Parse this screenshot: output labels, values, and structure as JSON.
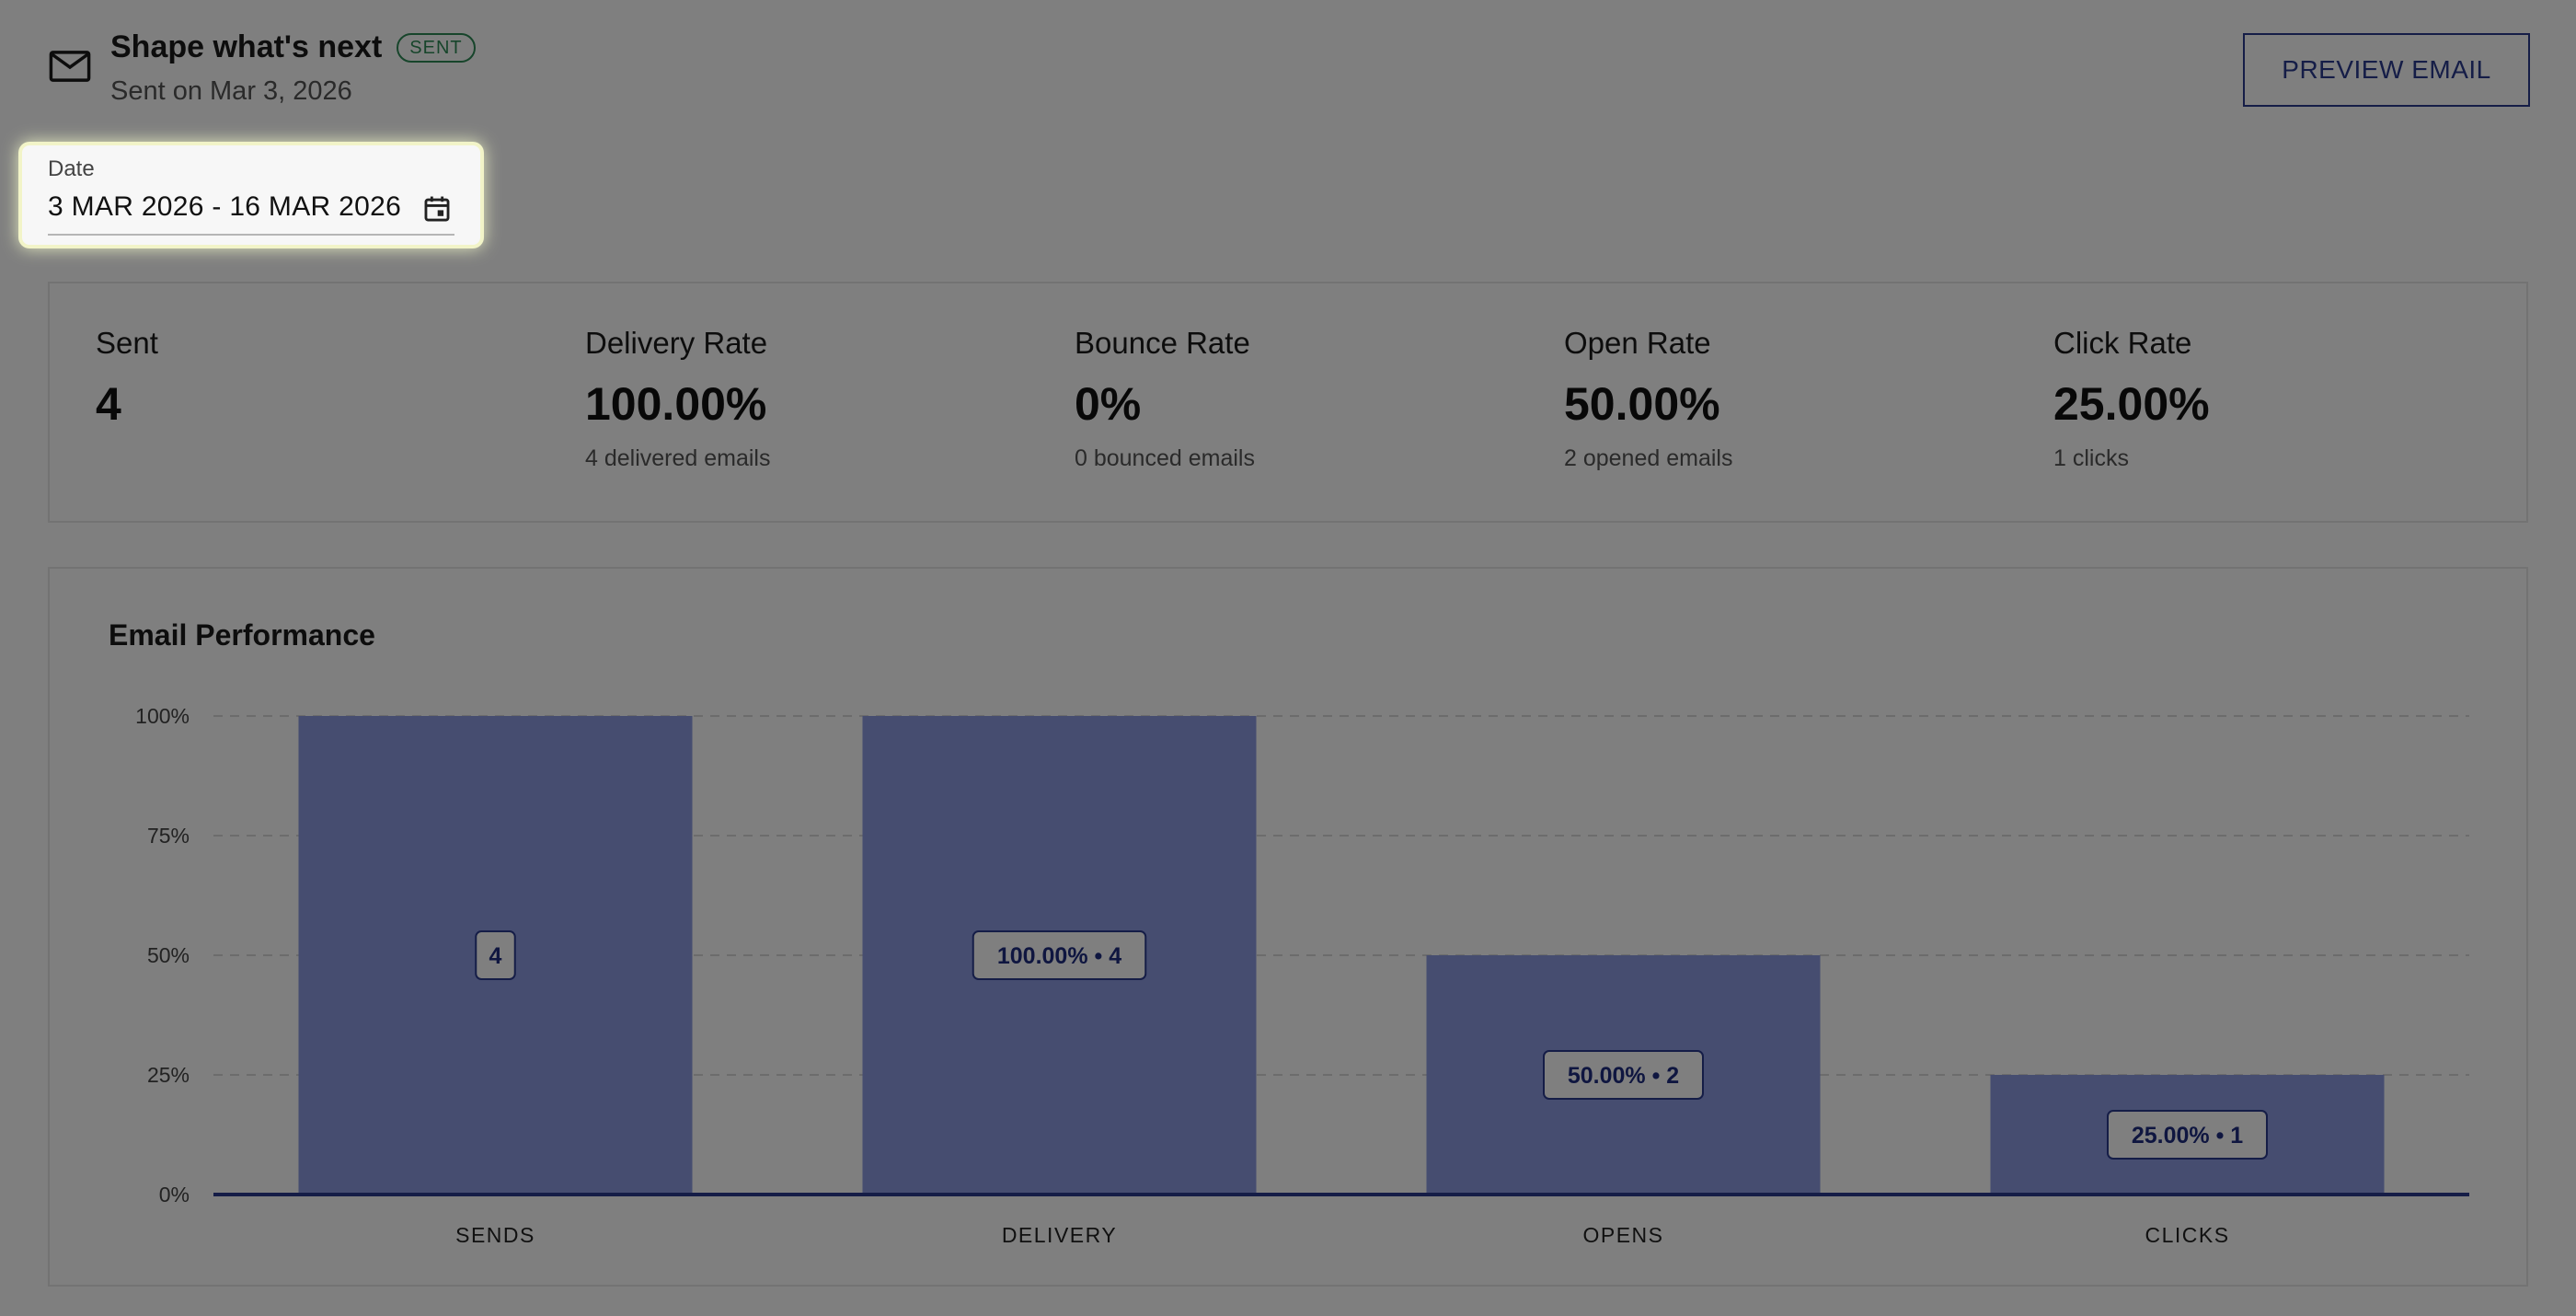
{
  "header": {
    "icon": "mail-icon",
    "title": "Shape what's next",
    "badge": "SENT",
    "subtitle": "Sent on Mar 3, 2026",
    "preview_button": "PREVIEW EMAIL"
  },
  "date_filter": {
    "label": "Date",
    "value": "3 MAR 2026 - 16 MAR 2026",
    "icon": "calendar-icon"
  },
  "stats": [
    {
      "label": "Sent",
      "value": "4",
      "sub": ""
    },
    {
      "label": "Delivery Rate",
      "value": "100.00%",
      "sub": "4 delivered emails"
    },
    {
      "label": "Bounce Rate",
      "value": "0%",
      "sub": "0 bounced emails"
    },
    {
      "label": "Open Rate",
      "value": "50.00%",
      "sub": "2 opened emails"
    },
    {
      "label": "Click Rate",
      "value": "25.00%",
      "sub": "1 clicks"
    }
  ],
  "chart": {
    "title": "Email Performance"
  },
  "chart_data": {
    "type": "bar",
    "title": "Email Performance",
    "categories": [
      "SENDS",
      "DELIVERY",
      "OPENS",
      "CLICKS"
    ],
    "values": [
      100,
      100,
      50,
      25
    ],
    "data_labels": [
      "4",
      "100.00% • 4",
      "50.00% • 2",
      "25.00% • 1"
    ],
    "yticks": [
      "0%",
      "25%",
      "50%",
      "75%",
      "100%"
    ],
    "ylim": [
      0,
      100
    ],
    "grid": true,
    "bar_color": "#8c9ae0",
    "axis_color": "#2a3a8f",
    "label_color": "#1f2d80"
  },
  "colors": {
    "accent": "#2a3a8f",
    "status_sent": "#2e8b57"
  }
}
